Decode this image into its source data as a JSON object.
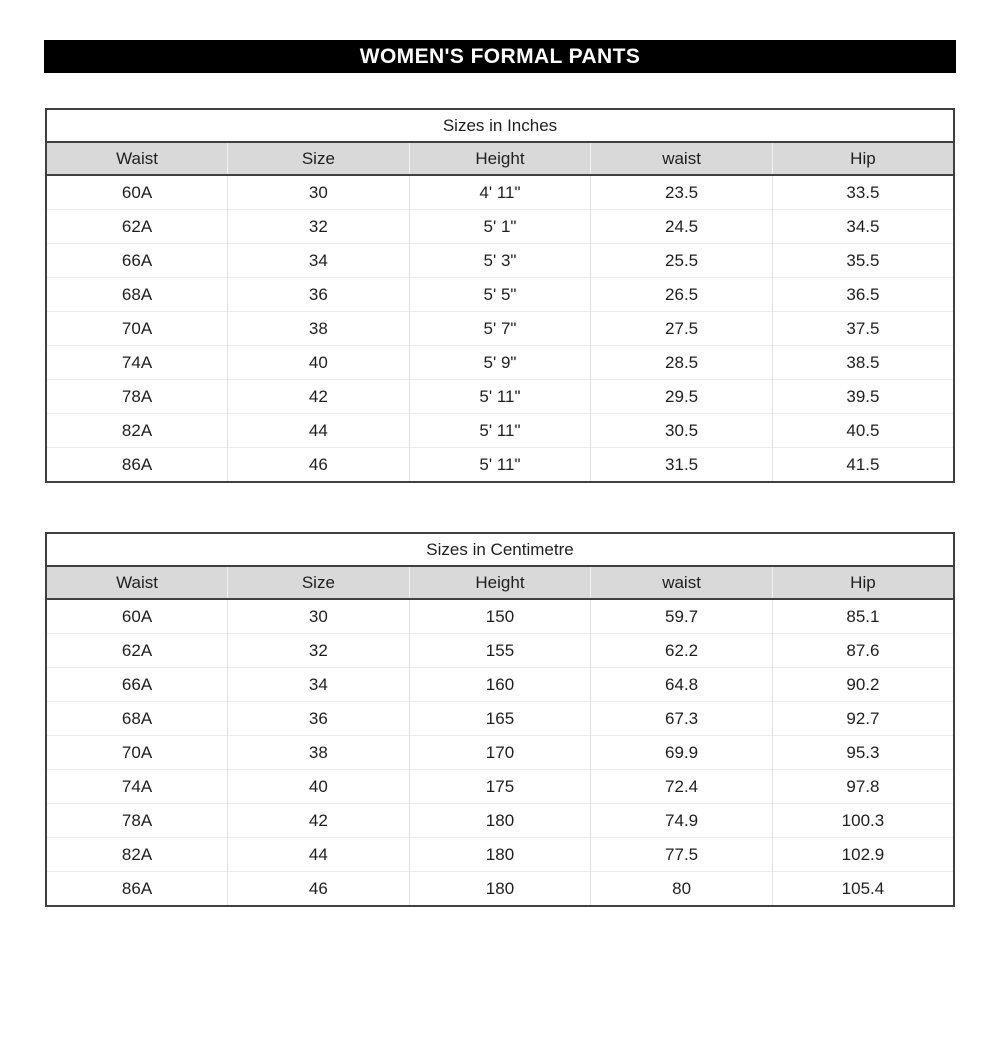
{
  "banner": {
    "title": "WOMEN'S FORMAL PANTS"
  },
  "colors": {
    "banner_bg": "#000000",
    "banner_fg": "#ffffff",
    "header_bg": "#d9d9d9",
    "outer_border": "#404040"
  },
  "tables": [
    {
      "title": "Sizes in Inches",
      "columns": [
        "Waist",
        "Size",
        "Height",
        "waist",
        "Hip"
      ],
      "rows": [
        [
          "60A",
          "30",
          "4' 11\"",
          "23.5",
          "33.5"
        ],
        [
          "62A",
          "32",
          "5' 1\"",
          "24.5",
          "34.5"
        ],
        [
          "66A",
          "34",
          "5' 3\"",
          "25.5",
          "35.5"
        ],
        [
          "68A",
          "36",
          "5' 5\"",
          "26.5",
          "36.5"
        ],
        [
          "70A",
          "38",
          "5' 7\"",
          "27.5",
          "37.5"
        ],
        [
          "74A",
          "40",
          "5' 9\"",
          "28.5",
          "38.5"
        ],
        [
          "78A",
          "42",
          "5' 11\"",
          "29.5",
          "39.5"
        ],
        [
          "82A",
          "44",
          "5' 11\"",
          "30.5",
          "40.5"
        ],
        [
          "86A",
          "46",
          "5' 11\"",
          "31.5",
          "41.5"
        ]
      ]
    },
    {
      "title": "Sizes in Centimetre",
      "columns": [
        "Waist",
        "Size",
        "Height",
        "waist",
        "Hip"
      ],
      "rows": [
        [
          "60A",
          "30",
          "150",
          "59.7",
          "85.1"
        ],
        [
          "62A",
          "32",
          "155",
          "62.2",
          "87.6"
        ],
        [
          "66A",
          "34",
          "160",
          "64.8",
          "90.2"
        ],
        [
          "68A",
          "36",
          "165",
          "67.3",
          "92.7"
        ],
        [
          "70A",
          "38",
          "170",
          "69.9",
          "95.3"
        ],
        [
          "74A",
          "40",
          "175",
          "72.4",
          "97.8"
        ],
        [
          "78A",
          "42",
          "180",
          "74.9",
          "100.3"
        ],
        [
          "82A",
          "44",
          "180",
          "77.5",
          "102.9"
        ],
        [
          "86A",
          "46",
          "180",
          "80",
          "105.4"
        ]
      ]
    }
  ]
}
